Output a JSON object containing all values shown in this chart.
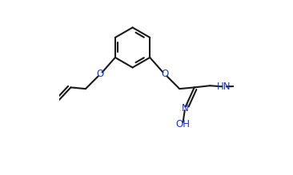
{
  "figsize": [
    3.66,
    2.19
  ],
  "dpi": 100,
  "line_color": "#1a1a1a",
  "heteroatom_color": "#1a35cc",
  "line_width": 1.5,
  "font_size": 8.5,
  "xlim": [
    0.0,
    1.0
  ],
  "ylim": [
    0.0,
    1.0
  ]
}
